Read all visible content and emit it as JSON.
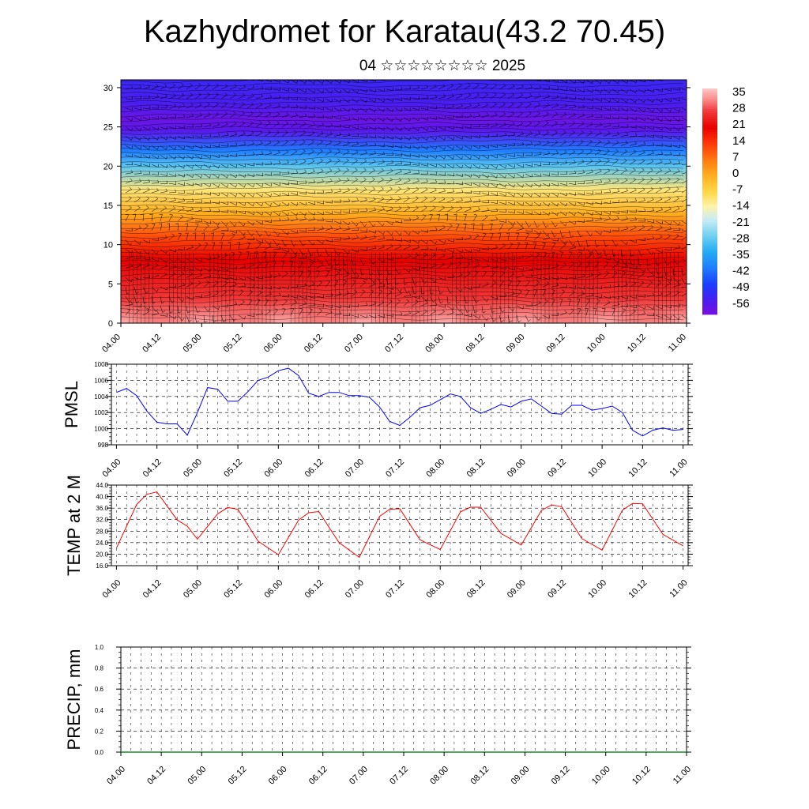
{
  "page": {
    "title": "Kazhydromet for Karatau(43.2 70.45)",
    "subtitle": "04 ☆☆☆☆☆☆☆☆ 2025"
  },
  "chart_data": [
    {
      "id": "cross-section",
      "type": "heatmap",
      "title": "",
      "xlabel": "",
      "ylabel": "",
      "x_ticks": [
        "04.00",
        "04.12",
        "05.00",
        "05.12",
        "06.00",
        "06.12",
        "07.00",
        "07.12",
        "08.00",
        "08.12",
        "09.00",
        "09.12",
        "10.00",
        "10.12",
        "11.00"
      ],
      "y_ticks": [
        0,
        5,
        10,
        15,
        20,
        25,
        30
      ],
      "ylim": [
        0,
        31
      ],
      "colorbar_ticks": [
        35,
        28,
        21,
        14,
        7,
        0,
        -7,
        -14,
        -21,
        -28,
        -35,
        -42,
        -49,
        -56
      ],
      "colorbar_range": [
        -60,
        38
      ],
      "temperature_profile": [
        {
          "height": 0,
          "value": 36
        },
        {
          "height": 3,
          "value": 28
        },
        {
          "height": 8,
          "value": 21
        },
        {
          "height": 11,
          "value": 12
        },
        {
          "height": 14,
          "value": 0
        },
        {
          "height": 17,
          "value": -10
        },
        {
          "height": 20,
          "value": -28
        },
        {
          "height": 22,
          "value": -40
        },
        {
          "height": 24.5,
          "value": -56
        },
        {
          "height": 26,
          "value": -58
        },
        {
          "height": 28,
          "value": -54
        },
        {
          "height": 31,
          "value": -52
        }
      ],
      "warm_cores": [
        {
          "x": "04.12",
          "value": 38
        },
        {
          "x": "05.12",
          "value": 35
        },
        {
          "x": "06.12",
          "value": 35
        },
        {
          "x": "07.12",
          "value": 36
        },
        {
          "x": "08.12",
          "value": 36
        },
        {
          "x": "09.12",
          "value": 36
        },
        {
          "x": "10.12",
          "value": 37
        }
      ],
      "grid": false,
      "legend": "colorbar right"
    },
    {
      "id": "pmsl",
      "type": "line",
      "ylabel": "PMSL",
      "xlabel": "",
      "ylim": [
        998,
        1008
      ],
      "y_ticks": [
        "998",
        "1000",
        "1002",
        "1004",
        "1006",
        "1008"
      ],
      "x_ticks": [
        "04.00",
        "04.12",
        "05.00",
        "05.12",
        "06.00",
        "06.12",
        "07.00",
        "07.12",
        "08.00",
        "08.12",
        "09.00",
        "09.12",
        "10.00",
        "10.12",
        "11.00"
      ],
      "x_range": [
        -0.5,
        56.5
      ],
      "series": [
        {
          "color": "#0000ff",
          "x": [
            0,
            1,
            2,
            3,
            4,
            5,
            6,
            7,
            8,
            9,
            10,
            11,
            12,
            13,
            14,
            15,
            16,
            17,
            18,
            19,
            20,
            21,
            22,
            23,
            24,
            25,
            26,
            27,
            28,
            29,
            30,
            31,
            32,
            33,
            34,
            35,
            36,
            37,
            38,
            39,
            40,
            41,
            42,
            43,
            44,
            45,
            46,
            47,
            48,
            49,
            50,
            51,
            52,
            53,
            54,
            55,
            56
          ],
          "values": [
            1004.5,
            1005.0,
            1004.1,
            1002.2,
            1000.8,
            1000.6,
            1000.6,
            999.2,
            1002.0,
            1005.1,
            1004.9,
            1003.4,
            1003.4,
            1004.6,
            1006.0,
            1006.4,
            1007.2,
            1007.5,
            1006.6,
            1004.4,
            1004.0,
            1004.5,
            1004.5,
            1004.1,
            1004.1,
            1003.9,
            1002.7,
            1000.9,
            1000.4,
            1001.4,
            1002.6,
            1002.9,
            1003.6,
            1004.3,
            1004.0,
            1002.6,
            1001.9,
            1002.4,
            1003.0,
            1002.7,
            1003.4,
            1003.7,
            1002.8,
            1001.9,
            1001.8,
            1002.9,
            1002.9,
            1002.3,
            1002.5,
            1002.8,
            1002.0,
            999.8,
            999.1,
            999.8,
            1000.1,
            999.8,
            999.9
          ]
        }
      ]
    },
    {
      "id": "temp2m",
      "type": "line",
      "ylabel": "TEMP at 2 M",
      "xlabel": "",
      "ylim": [
        16,
        44
      ],
      "y_ticks": [
        "16.0",
        "20.0",
        "24.0",
        "28.0",
        "32.0",
        "36.0",
        "40.0",
        "44.0"
      ],
      "x_ticks": [
        "04.00",
        "04.12",
        "05.00",
        "05.12",
        "06.00",
        "06.12",
        "07.00",
        "07.12",
        "08.00",
        "08.12",
        "09.00",
        "09.12",
        "10.00",
        "10.12",
        "11.00"
      ],
      "x_range": [
        -0.5,
        56.5
      ],
      "series": [
        {
          "color": "#ff0000",
          "x": [
            0,
            2,
            3,
            4,
            6,
            7,
            8,
            10,
            11,
            12,
            14,
            16,
            18,
            19,
            20,
            22,
            24,
            26,
            27,
            28,
            30,
            32,
            34,
            35,
            36,
            38,
            40,
            42,
            43,
            44,
            46,
            48,
            50,
            51,
            52,
            54,
            56
          ],
          "values": [
            22.1,
            37.3,
            40.8,
            41.6,
            31.9,
            29.7,
            25.2,
            34.0,
            36.2,
            35.6,
            24.5,
            19.8,
            31.8,
            34.4,
            34.8,
            24.0,
            18.9,
            33.1,
            35.6,
            35.8,
            25.0,
            21.6,
            34.7,
            36.3,
            36.3,
            27.2,
            23.2,
            35.2,
            37.1,
            36.5,
            25.4,
            21.4,
            35.3,
            37.6,
            37.5,
            26.9,
            22.9
          ]
        }
      ]
    },
    {
      "id": "precip",
      "type": "bar",
      "ylabel": "PRECIP, mm",
      "xlabel": "",
      "ylim": [
        0,
        1
      ],
      "y_ticks": [
        "0.0",
        "0.2",
        "0.4",
        "0.6",
        "0.8",
        "1.0"
      ],
      "x_ticks": [
        "04.00",
        "04.12",
        "05.00",
        "05.12",
        "06.00",
        "06.12",
        "07.00",
        "07.12",
        "08.00",
        "08.12",
        "09.00",
        "09.12",
        "10.00",
        "10.12",
        "11.00"
      ],
      "x_range": [
        0,
        56
      ],
      "values": []
    }
  ]
}
